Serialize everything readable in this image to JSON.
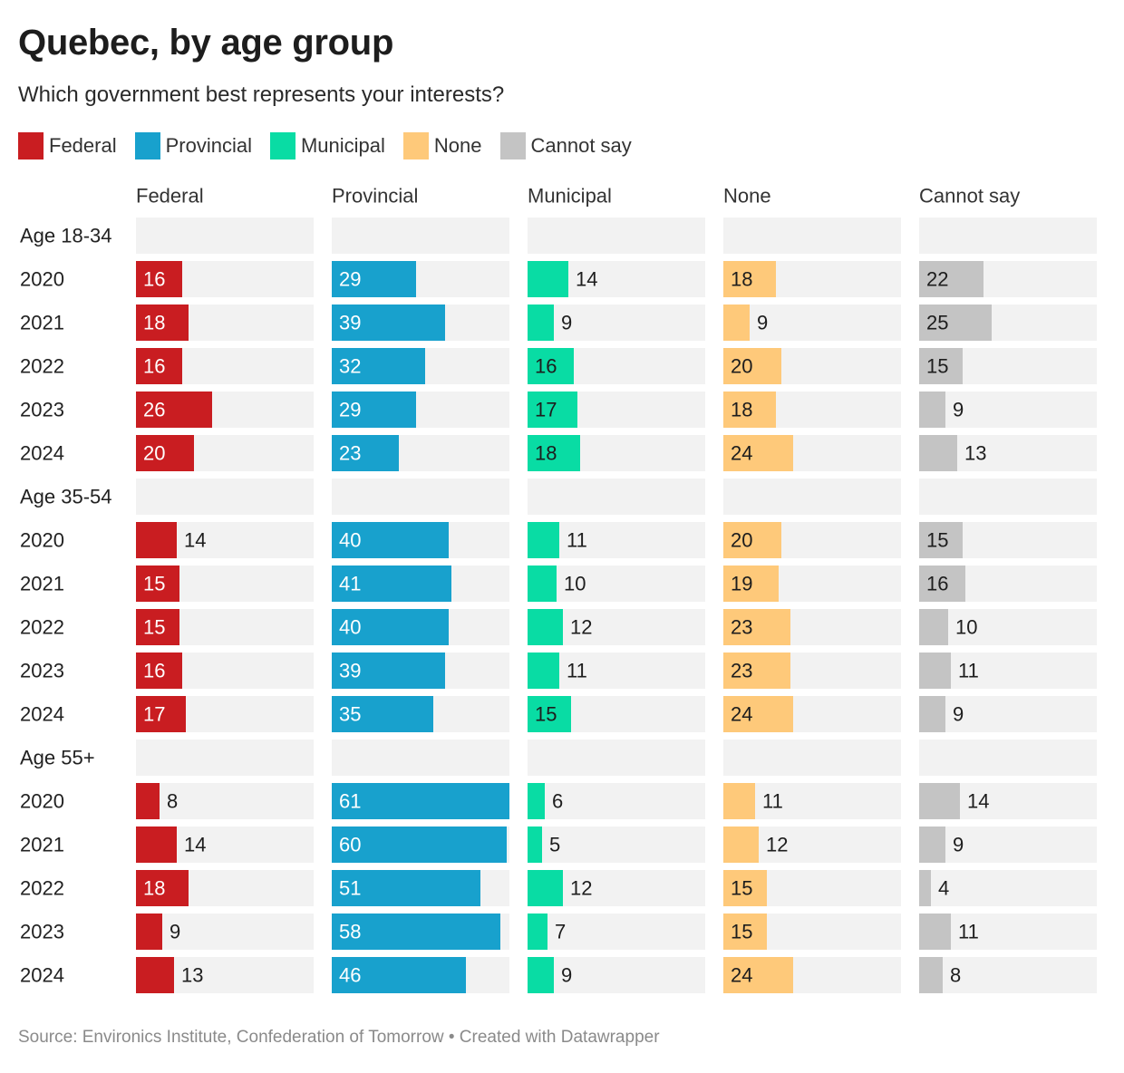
{
  "chart_data": {
    "type": "bar",
    "title": "Quebec, by age group",
    "subtitle": "Which government best represents your interests?",
    "colors": {
      "Federal": "#c91d21",
      "Provincial": "#18a1cd",
      "Municipal": "#09dca4",
      "None": "#fec97a",
      "Cannot say": "#c4c4c4",
      "background_bar": "#f2f2f2"
    },
    "columns": [
      "Federal",
      "Provincial",
      "Municipal",
      "None",
      "Cannot say"
    ],
    "groups": [
      {
        "label": "Age 18-34",
        "rows": [
          {
            "year": "2020",
            "values": [
              16,
              29,
              14,
              18,
              22
            ]
          },
          {
            "year": "2021",
            "values": [
              18,
              39,
              9,
              9,
              25
            ]
          },
          {
            "year": "2022",
            "values": [
              16,
              32,
              16,
              20,
              15
            ]
          },
          {
            "year": "2023",
            "values": [
              26,
              29,
              17,
              18,
              9
            ]
          },
          {
            "year": "2024",
            "values": [
              20,
              23,
              18,
              24,
              13
            ]
          }
        ]
      },
      {
        "label": "Age 35-54",
        "rows": [
          {
            "year": "2020",
            "values": [
              14,
              40,
              11,
              20,
              15
            ]
          },
          {
            "year": "2021",
            "values": [
              15,
              41,
              10,
              19,
              16
            ]
          },
          {
            "year": "2022",
            "values": [
              15,
              40,
              12,
              23,
              10
            ]
          },
          {
            "year": "2023",
            "values": [
              16,
              39,
              11,
              23,
              11
            ]
          },
          {
            "year": "2024",
            "values": [
              17,
              35,
              15,
              24,
              9
            ]
          }
        ]
      },
      {
        "label": "Age 55+",
        "rows": [
          {
            "year": "2020",
            "values": [
              8,
              61,
              6,
              11,
              14
            ]
          },
          {
            "year": "2021",
            "values": [
              14,
              60,
              5,
              12,
              9
            ]
          },
          {
            "year": "2022",
            "values": [
              18,
              51,
              12,
              15,
              4
            ]
          },
          {
            "year": "2023",
            "values": [
              9,
              58,
              7,
              15,
              11
            ]
          },
          {
            "year": "2024",
            "values": [
              13,
              46,
              9,
              24,
              8
            ]
          }
        ]
      }
    ],
    "xlim": [
      0,
      61
    ],
    "grid": false,
    "legend_position": "top-left"
  },
  "legend": [
    {
      "label": "Federal",
      "color": "#c91d21"
    },
    {
      "label": "Provincial",
      "color": "#18a1cd"
    },
    {
      "label": "Municipal",
      "color": "#09dca4"
    },
    {
      "label": "None",
      "color": "#fec97a"
    },
    {
      "label": "Cannot say",
      "color": "#c4c4c4"
    }
  ],
  "footer": "Source: Environics Institute, Confederation of Tomorrow • Created with Datawrapper"
}
